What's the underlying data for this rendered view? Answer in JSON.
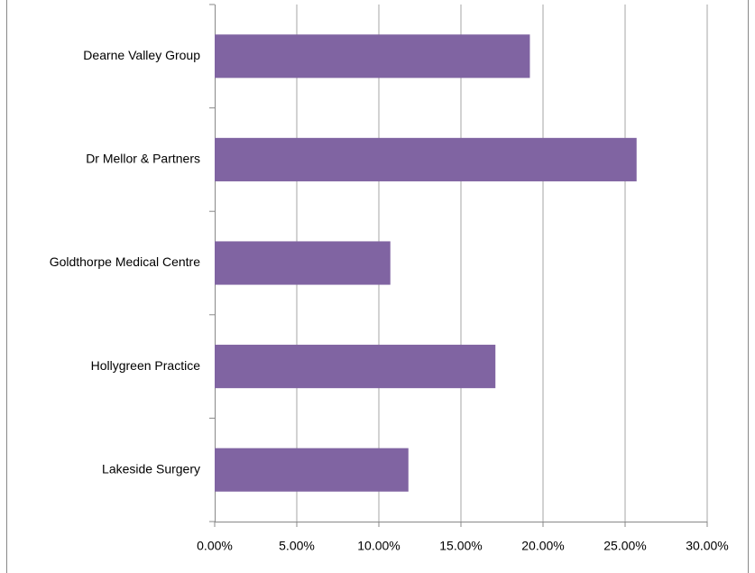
{
  "chart_data": {
    "type": "bar",
    "orientation": "horizontal",
    "categories": [
      "Dearne Valley Group",
      "Dr Mellor & Partners",
      "Goldthorpe Medical Centre",
      "Hollygreen Practice",
      "Lakeside Surgery"
    ],
    "values": [
      19.2,
      25.7,
      10.7,
      17.1,
      11.8
    ],
    "color": "#8064a2",
    "xlim": [
      0,
      30
    ],
    "xticks": [
      {
        "value": 0,
        "label": "0.00%"
      },
      {
        "value": 5,
        "label": "5.00%"
      },
      {
        "value": 10,
        "label": "10.00%"
      },
      {
        "value": 15,
        "label": "15.00%"
      },
      {
        "value": 20,
        "label": "20.00%"
      },
      {
        "value": 25,
        "label": "25.00%"
      },
      {
        "value": 30,
        "label": "30.00%"
      }
    ],
    "grid": true
  }
}
